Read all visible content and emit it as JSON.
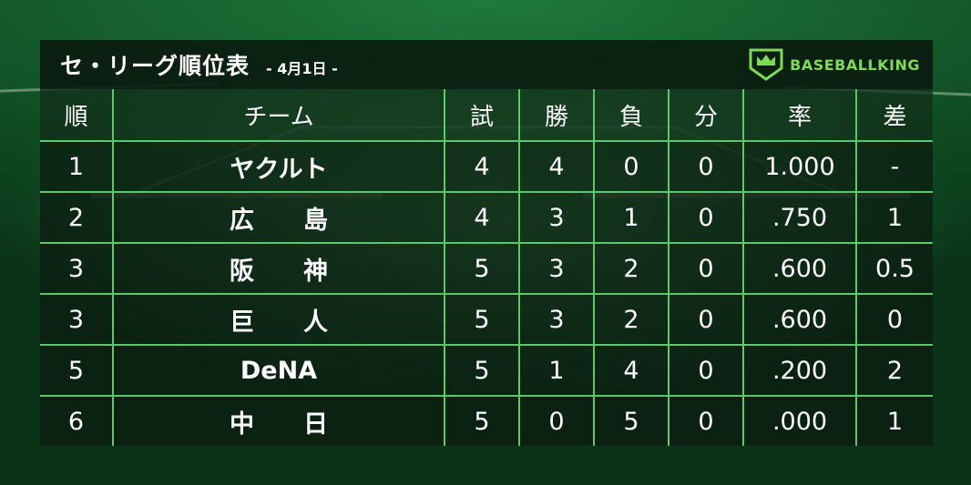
{
  "title": "セ・リーグ順位表",
  "date": "- 4月1日 -",
  "logo_text": "BASEBALLKING",
  "colors": {
    "accent": "#5ec76b",
    "logo": "#7ed957"
  },
  "table": {
    "headers": [
      "順",
      "チーム",
      "試",
      "勝",
      "負",
      "分",
      "率",
      "差"
    ],
    "rows": [
      [
        "1",
        "ヤクルト",
        "4",
        "4",
        "0",
        "0",
        "1.000",
        "-"
      ],
      [
        "2",
        "広　　島",
        "4",
        "3",
        "1",
        "0",
        ".750",
        "1"
      ],
      [
        "3",
        "阪　　神",
        "5",
        "3",
        "2",
        "0",
        ".600",
        "0.5"
      ],
      [
        "3",
        "巨　　人",
        "5",
        "3",
        "2",
        "0",
        ".600",
        "0"
      ],
      [
        "5",
        "DeNA",
        "5",
        "1",
        "4",
        "0",
        ".200",
        "2"
      ],
      [
        "6",
        "中　　日",
        "5",
        "0",
        "5",
        "0",
        ".000",
        "1"
      ]
    ]
  }
}
